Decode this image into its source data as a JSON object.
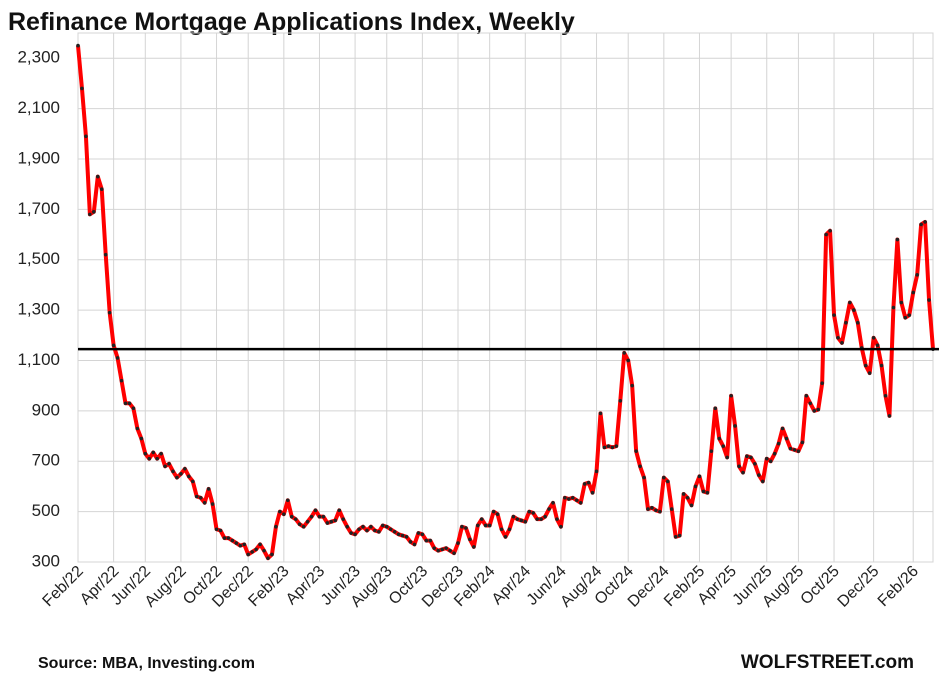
{
  "chart_data": {
    "type": "line",
    "title": "Refinance Mortgage Applications Index, Weekly",
    "source": "Source: MBA, Investing.com",
    "watermark": "WOLFSTREET.com",
    "categories": [
      "Feb/22",
      null,
      null,
      null,
      null,
      null,
      null,
      null,
      null,
      "Apr/22",
      null,
      null,
      null,
      null,
      null,
      null,
      null,
      "Jun/22",
      null,
      null,
      null,
      null,
      null,
      null,
      null,
      null,
      "Aug/22",
      null,
      null,
      null,
      null,
      null,
      null,
      null,
      null,
      "Oct/22",
      null,
      null,
      null,
      null,
      null,
      null,
      null,
      "Dec/22",
      null,
      null,
      null,
      null,
      null,
      null,
      null,
      null,
      "Feb/23",
      null,
      null,
      null,
      null,
      null,
      null,
      null,
      null,
      "Apr/23",
      null,
      null,
      null,
      null,
      null,
      null,
      null,
      null,
      "Jun/23",
      null,
      null,
      null,
      null,
      null,
      null,
      null,
      "Aug/23",
      null,
      null,
      null,
      null,
      null,
      null,
      null,
      null,
      "Oct/23",
      null,
      null,
      null,
      null,
      null,
      null,
      null,
      null,
      "Dec/23",
      null,
      null,
      null,
      null,
      null,
      null,
      null,
      "Feb/24",
      null,
      null,
      null,
      null,
      null,
      null,
      null,
      null,
      "Apr/24",
      null,
      null,
      null,
      null,
      null,
      null,
      null,
      null,
      "Jun/24",
      null,
      null,
      null,
      null,
      null,
      null,
      null,
      null,
      "Aug/24",
      null,
      null,
      null,
      null,
      null,
      null,
      null,
      "Oct/24",
      null,
      null,
      null,
      null,
      null,
      null,
      null,
      null,
      "Dec/24",
      null,
      null,
      null,
      null,
      null,
      null,
      null,
      null,
      "Feb/25",
      null,
      null,
      null,
      null,
      null,
      null,
      null,
      "Apr/25",
      null,
      null,
      null,
      null,
      null,
      null,
      null,
      null,
      "Jun/25",
      null,
      null,
      null,
      null,
      null,
      null,
      null,
      "Aug/25",
      null,
      null,
      null,
      null,
      null,
      null,
      null,
      null,
      "Oct/25",
      null,
      null,
      null,
      null,
      null,
      null,
      null,
      null,
      null,
      "Dec/25",
      null,
      null,
      null,
      null,
      null,
      null,
      null,
      null,
      null,
      "Feb/26",
      null,
      null,
      null,
      null,
      null
    ],
    "series": [
      {
        "name": "Refinance index",
        "color": "#ff0000",
        "marker_color": "#222222",
        "values": [
          2350,
          2180,
          1990,
          1680,
          1690,
          1830,
          1780,
          1520,
          1290,
          1160,
          1110,
          1020,
          930,
          930,
          910,
          830,
          790,
          730,
          710,
          735,
          710,
          730,
          680,
          690,
          660,
          635,
          650,
          670,
          640,
          620,
          560,
          555,
          535,
          590,
          530,
          430,
          425,
          395,
          395,
          385,
          375,
          365,
          370,
          330,
          340,
          350,
          370,
          345,
          315,
          330,
          440,
          500,
          490,
          545,
          480,
          470,
          450,
          440,
          460,
          480,
          505,
          480,
          480,
          455,
          460,
          465,
          505,
          470,
          440,
          415,
          410,
          430,
          440,
          425,
          440,
          425,
          420,
          445,
          440,
          430,
          420,
          410,
          405,
          400,
          380,
          370,
          415,
          410,
          385,
          385,
          355,
          345,
          350,
          355,
          345,
          335,
          375,
          440,
          435,
          390,
          360,
          445,
          470,
          445,
          445,
          500,
          490,
          430,
          400,
          430,
          480,
          470,
          465,
          460,
          500,
          495,
          470,
          470,
          480,
          510,
          535,
          470,
          440,
          555,
          550,
          555,
          545,
          535,
          610,
          615,
          575,
          660,
          890,
          755,
          760,
          755,
          760,
          940,
          1130,
          1100,
          1000,
          740,
          680,
          635,
          510,
          515,
          505,
          500,
          635,
          620,
          510,
          400,
          405,
          570,
          555,
          525,
          600,
          640,
          580,
          575,
          740,
          910,
          790,
          760,
          715,
          960,
          840,
          680,
          655,
          720,
          715,
          690,
          645,
          620,
          710,
          700,
          730,
          770,
          830,
          790,
          750,
          745,
          740,
          775,
          960,
          930,
          900,
          905,
          1010,
          1600,
          1615,
          1280,
          1190,
          1170,
          1250,
          1330,
          1300,
          1250,
          1150,
          1080,
          1050,
          1190,
          1160,
          1080,
          960,
          880,
          1310,
          1580,
          1330,
          1270,
          1280,
          1370,
          1440,
          1640,
          1650,
          1340,
          1145
        ]
      }
    ],
    "reference_line": 1145,
    "ylim": [
      300,
      2400
    ],
    "yticks": [
      300,
      500,
      700,
      900,
      {
        "value": 1100,
        "label": "1,100"
      },
      {
        "value": 1300,
        "label": "1,300"
      },
      {
        "value": 1500,
        "label": "1,500"
      },
      {
        "value": 1700,
        "label": "1,700"
      },
      {
        "value": 1900,
        "label": "1,900"
      },
      {
        "value": 2100,
        "label": "2,100"
      },
      {
        "value": 2300,
        "label": "2,300"
      }
    ],
    "grid": true
  }
}
